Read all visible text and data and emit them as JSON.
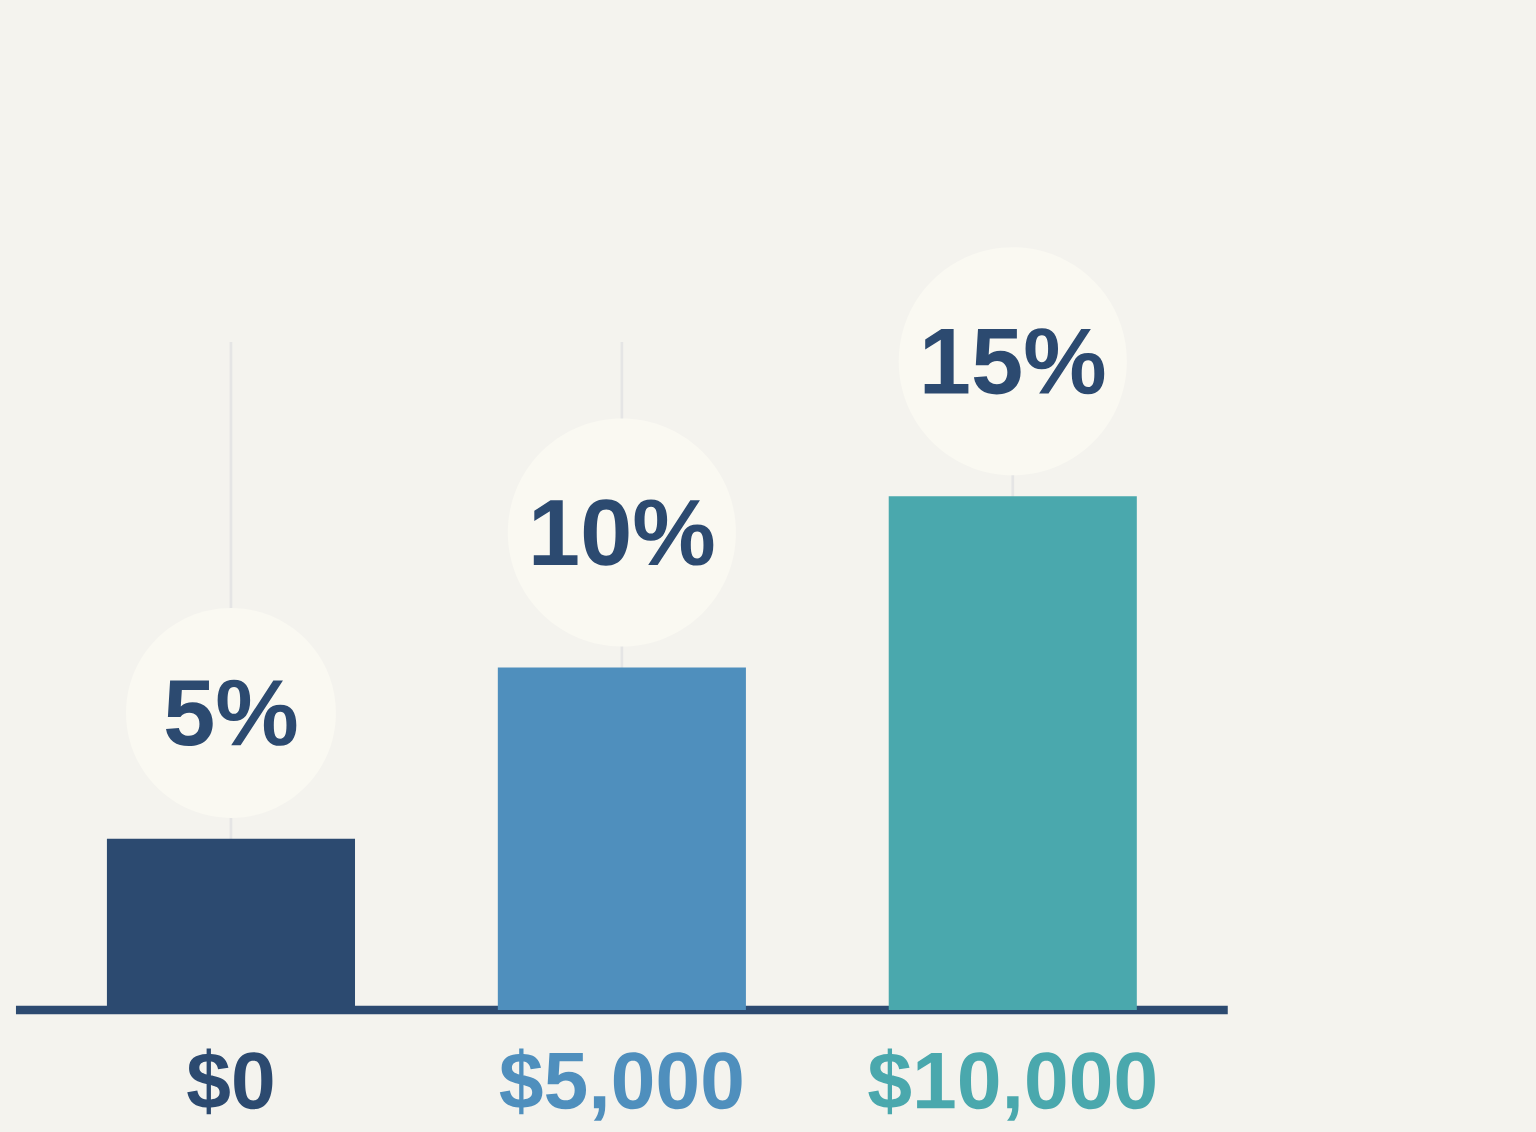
{
  "chart_data": {
    "type": "bar",
    "categories": [
      "$0",
      "$5,000",
      "$10,000"
    ],
    "values": [
      5,
      10,
      15
    ],
    "value_labels": [
      "5%",
      "10%",
      "15%"
    ],
    "colors": [
      "#2c4a70",
      "#4f8fbd",
      "#4aa8ad"
    ],
    "grid": true,
    "tick_labels": "x"
  }
}
